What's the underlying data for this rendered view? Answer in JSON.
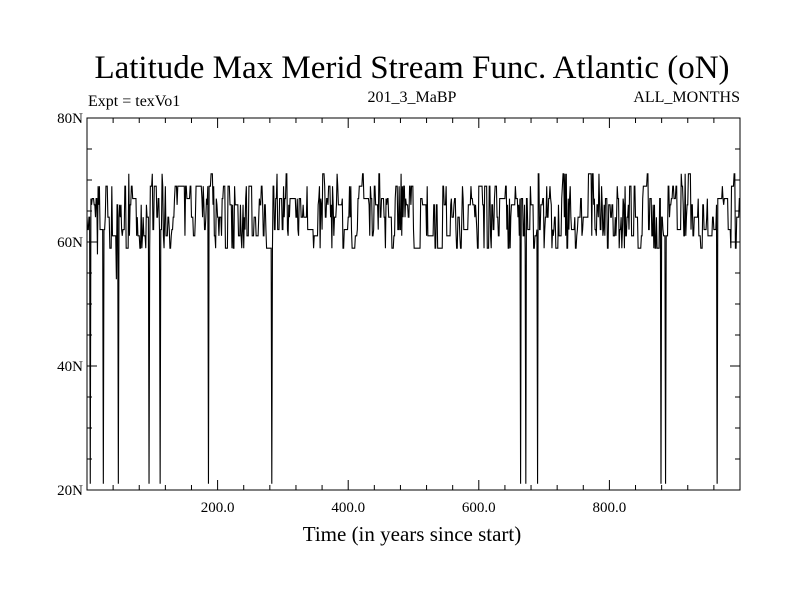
{
  "chart_data": {
    "type": "line",
    "title": "Latitude Max Merid Stream Func. Atlantic (oN)",
    "subtitle_left": "Expt = texVo1",
    "subtitle_center": "201_3_MaBP",
    "subtitle_right": "ALL_MONTHS",
    "xlabel": "Time (in years since start)",
    "ylabel": "",
    "xlim": [
      0,
      1000
    ],
    "ylim": [
      20,
      80
    ],
    "x_ticks": [
      {
        "value": 200,
        "label": "200.0"
      },
      {
        "value": 400,
        "label": "400.0"
      },
      {
        "value": 600,
        "label": "600.0"
      },
      {
        "value": 800,
        "label": "800.0"
      }
    ],
    "y_ticks": [
      {
        "value": 20,
        "label": "20N"
      },
      {
        "value": 40,
        "label": "40N"
      },
      {
        "value": 60,
        "label": "60N"
      },
      {
        "value": 80,
        "label": "80N"
      }
    ],
    "grid": false,
    "legend": "none",
    "line_color": "#000000",
    "baseline": {
      "levels": [
        59,
        61,
        62,
        64,
        66,
        67,
        69
      ],
      "extremes": [
        71
      ]
    },
    "dips": [
      {
        "x": 5,
        "y": 21
      },
      {
        "x": 16,
        "y": 58
      },
      {
        "x": 25,
        "y": 21
      },
      {
        "x": 45,
        "y": 54
      },
      {
        "x": 48,
        "y": 21
      },
      {
        "x": 95,
        "y": 21
      },
      {
        "x": 112,
        "y": 21
      },
      {
        "x": 186,
        "y": 21
      },
      {
        "x": 283,
        "y": 21
      },
      {
        "x": 664,
        "y": 21
      },
      {
        "x": 672,
        "y": 21
      },
      {
        "x": 690,
        "y": 21
      },
      {
        "x": 879,
        "y": 21
      },
      {
        "x": 886,
        "y": 21
      },
      {
        "x": 965,
        "y": 21
      }
    ]
  }
}
